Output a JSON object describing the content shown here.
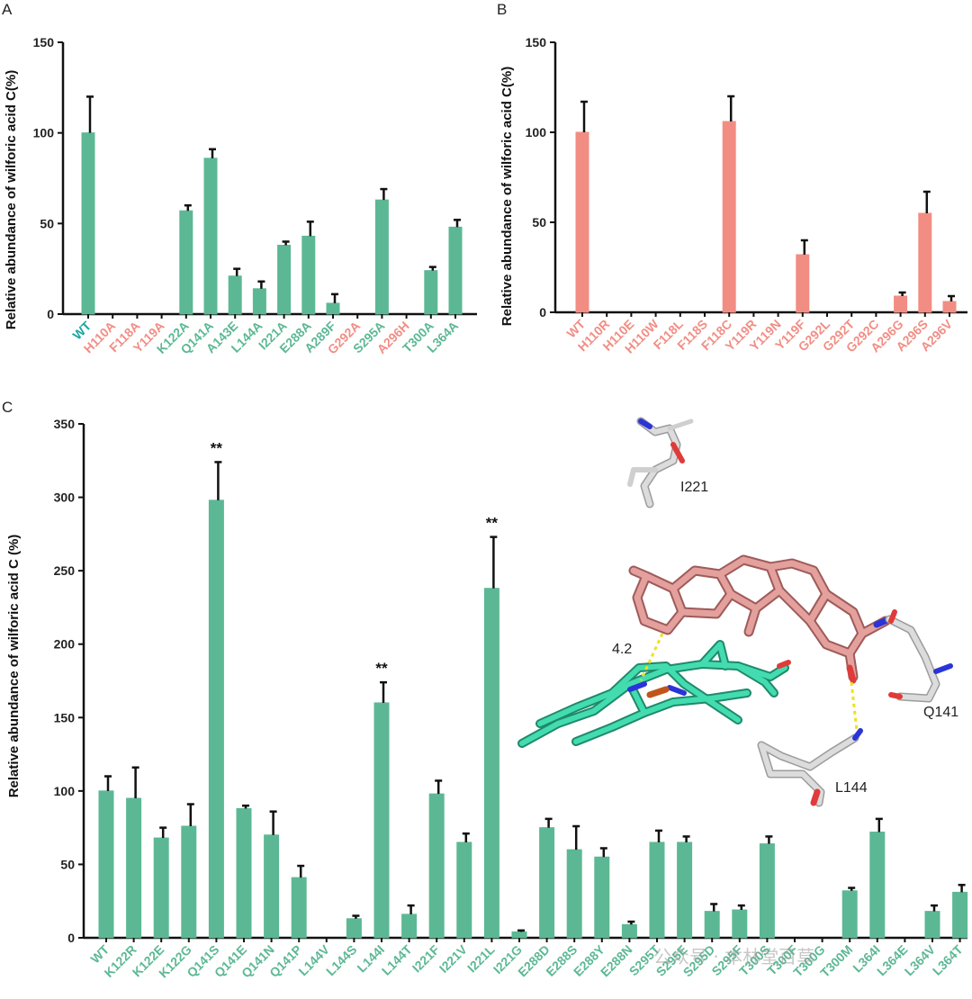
{
  "colors": {
    "green": "#5cb894",
    "salmon": "#f28d84",
    "wt_label": "#1aa6a0",
    "heme": "#3fd9ac",
    "ligand": "#d98a88",
    "residue": "#cfcfcf",
    "nitrogen": "#2b34d8",
    "oxygen": "#e03b3b",
    "iron": "#c0551b",
    "hbond": "#f0e020"
  },
  "chart_data": [
    {
      "id": "A",
      "panel_label": "A",
      "type": "bar",
      "title": "",
      "xlabel": "",
      "ylabel": "Relative abundance of  wilforic acid C(%)",
      "ylim": [
        0,
        150
      ],
      "yticks": [
        0,
        50,
        100,
        150
      ],
      "categories": [
        "WT",
        "H110A",
        "F118A",
        "Y119A",
        "K122A",
        "Q141A",
        "A143E",
        "L144A",
        "I221A",
        "E288A",
        "A289F",
        "G292A",
        "S295A",
        "A296H",
        "T300A",
        "L364A"
      ],
      "values": [
        100,
        0,
        0,
        0,
        57,
        86,
        21,
        14,
        38,
        43,
        6,
        0,
        63,
        0,
        24,
        48
      ],
      "errors": [
        20,
        0,
        0,
        0,
        3,
        5,
        4,
        4,
        2,
        8,
        5,
        0,
        6,
        0,
        2,
        4
      ],
      "label_colors": [
        "wt",
        "salmon",
        "salmon",
        "salmon",
        "green",
        "green",
        "green",
        "green",
        "green",
        "green",
        "green",
        "salmon",
        "green",
        "salmon",
        "green",
        "green"
      ],
      "bar_color": "green",
      "significance": []
    },
    {
      "id": "B",
      "panel_label": "B",
      "type": "bar",
      "title": "",
      "xlabel": "",
      "ylabel": "Relative abundance of  wilforic acid C(%)",
      "ylim": [
        0,
        150
      ],
      "yticks": [
        0,
        50,
        100,
        150
      ],
      "categories": [
        "WT",
        "H110R",
        "H110E",
        "H110W",
        "F118L",
        "F118S",
        "F118C",
        "Y119R",
        "Y119N",
        "Y119F",
        "G292L",
        "G292T",
        "G292C",
        "A296G",
        "A296S",
        "A296V"
      ],
      "values": [
        100,
        0,
        0,
        0,
        0,
        0,
        106,
        0,
        0,
        32,
        0,
        0,
        0,
        9,
        55,
        6
      ],
      "errors": [
        17,
        0,
        0,
        0,
        0,
        0,
        14,
        0,
        0,
        8,
        0,
        0,
        0,
        2,
        12,
        3
      ],
      "label_colors": [
        "salmon",
        "salmon",
        "salmon",
        "salmon",
        "salmon",
        "salmon",
        "salmon",
        "salmon",
        "salmon",
        "salmon",
        "salmon",
        "salmon",
        "salmon",
        "salmon",
        "salmon",
        "salmon"
      ],
      "bar_color": "salmon",
      "significance": []
    },
    {
      "id": "C",
      "panel_label": "C",
      "type": "bar",
      "title": "",
      "xlabel": "",
      "ylabel": "Relative abundance of  wilforic acid C  (%)",
      "ylim": [
        0,
        350
      ],
      "yticks": [
        0,
        50,
        100,
        150,
        200,
        250,
        300,
        350
      ],
      "categories": [
        "WT",
        "K122R",
        "K122E",
        "K122G",
        "Q141S",
        "Q141E",
        "Q141N",
        "Q141P",
        "L144V",
        "L144S",
        "L144I",
        "L144T",
        "I221F",
        "I221V",
        "I221L",
        "I221G",
        "E288D",
        "E288S",
        "E288Y",
        "E288N",
        "S295T",
        "S295E",
        "S295D",
        "S295F",
        "T300S",
        "T300F",
        "T300G",
        "T300M",
        "L364I",
        "L364E",
        "L364V",
        "L364T"
      ],
      "values": [
        100,
        95,
        68,
        76,
        298,
        88,
        70,
        41,
        0,
        13,
        160,
        16,
        98,
        65,
        238,
        4,
        75,
        60,
        55,
        9,
        65,
        65,
        18,
        19,
        64,
        0,
        0,
        32,
        72,
        0,
        18,
        31
      ],
      "errors": [
        10,
        21,
        7,
        15,
        26,
        2,
        16,
        8,
        0,
        2,
        14,
        6,
        9,
        6,
        35,
        1,
        6,
        16,
        6,
        2,
        8,
        4,
        5,
        3,
        5,
        0,
        0,
        2,
        9,
        0,
        4,
        5
      ],
      "label_colors": [
        "green",
        "green",
        "green",
        "green",
        "green",
        "green",
        "green",
        "green",
        "green",
        "green",
        "green",
        "green",
        "green",
        "green",
        "green",
        "green",
        "green",
        "green",
        "green",
        "green",
        "green",
        "green",
        "green",
        "green",
        "green",
        "green",
        "green",
        "green",
        "green",
        "green",
        "green",
        "green"
      ],
      "bar_color": "green",
      "significance": [
        {
          "category": "Q141S",
          "text": "**"
        },
        {
          "category": "L144I",
          "text": "**"
        },
        {
          "category": "I221L",
          "text": "**"
        }
      ]
    }
  ],
  "structure": {
    "residue_labels": [
      "I221",
      "Q141",
      "L144"
    ],
    "distance_label": "4.2"
  },
  "watermark": {
    "text": "公众号 · 本林堂百草"
  }
}
